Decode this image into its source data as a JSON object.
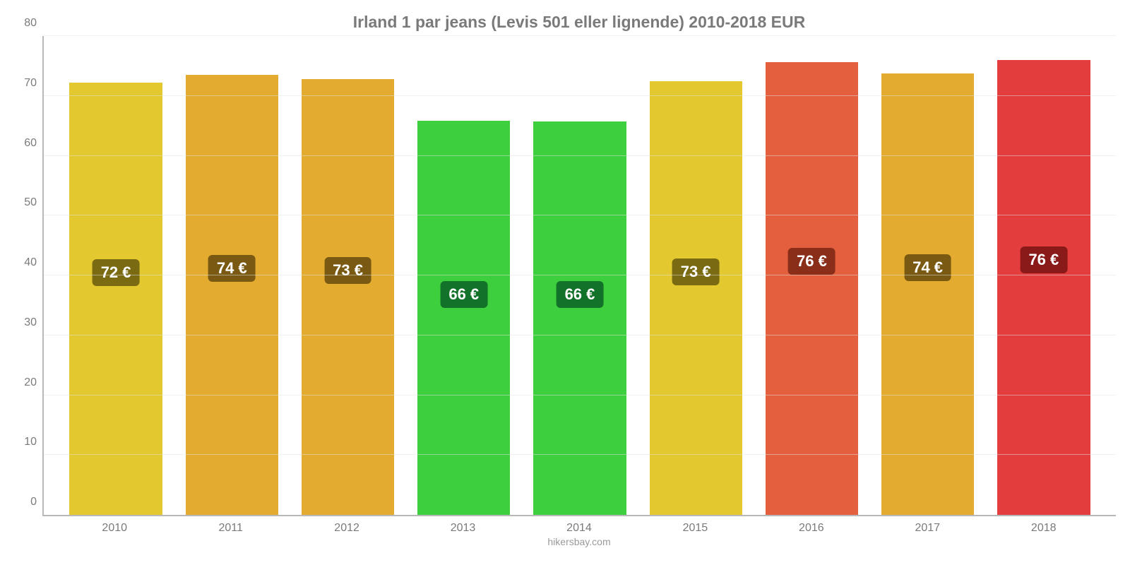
{
  "chart": {
    "type": "bar",
    "title": "Irland 1 par jeans (Levis 501 eller lignende) 2010-2018 EUR",
    "title_fontsize": 23,
    "title_color": "#7a7a7a",
    "background_color": "#ffffff",
    "axis_color": "#b8b8b8",
    "grid_color": "#e3e3e3",
    "label_color": "#7a7a7a",
    "xlabel_fontsize": 16,
    "ylabel_fontsize": 16,
    "ylim": [
      0,
      80
    ],
    "ytick_step": 10,
    "yticks": [
      0,
      10,
      20,
      30,
      40,
      50,
      60,
      70,
      80
    ],
    "bar_width_pct": 80,
    "value_label_fontsize": 22,
    "label_top_pct": 44,
    "categories": [
      "2010",
      "2011",
      "2012",
      "2013",
      "2014",
      "2015",
      "2016",
      "2017",
      "2018"
    ],
    "values": [
      72.2,
      73.5,
      72.8,
      65.8,
      65.7,
      72.5,
      75.6,
      73.8,
      76.0
    ],
    "value_labels": [
      "72 €",
      "74 €",
      "73 €",
      "66 €",
      "66 €",
      "73 €",
      "76 €",
      "74 €",
      "76 €"
    ],
    "bar_colors": [
      "#e3c92f",
      "#e3ab2f",
      "#e3ab2f",
      "#3dcf3d",
      "#3dcf3d",
      "#e3c92f",
      "#e35f3d",
      "#e3ab2f",
      "#e33d3d"
    ],
    "badge_colors": [
      "#7a6b13",
      "#7a5a13",
      "#7a5a13",
      "#13722a",
      "#13722a",
      "#7a6b13",
      "#8a2e1a",
      "#7a5a13",
      "#8a1a1a"
    ],
    "attribution": "hikersbay.com",
    "attribution_color": "#9a9a9a",
    "attribution_fontsize": 14
  }
}
